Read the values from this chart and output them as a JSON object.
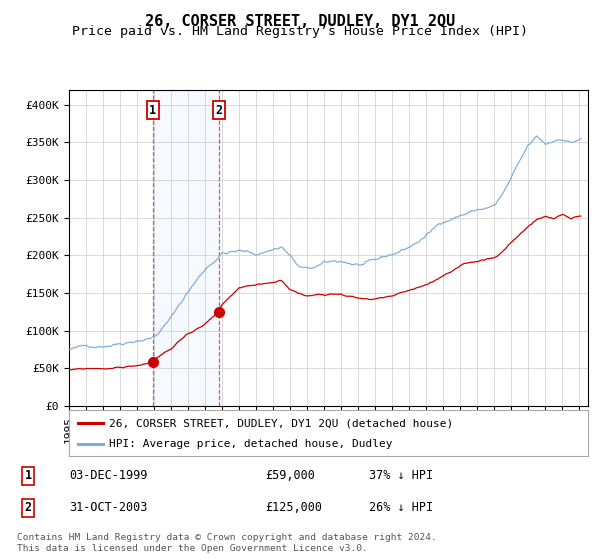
{
  "title": "26, CORSER STREET, DUDLEY, DY1 2QU",
  "subtitle": "Price paid vs. HM Land Registry’s House Price Index (HPI)",
  "ylim": [
    0,
    420000
  ],
  "yticks": [
    0,
    50000,
    100000,
    150000,
    200000,
    250000,
    300000,
    350000,
    400000
  ],
  "ytick_labels": [
    "£0",
    "£50K",
    "£100K",
    "£150K",
    "£200K",
    "£250K",
    "£300K",
    "£350K",
    "£400K"
  ],
  "red_line_color": "#cc0000",
  "blue_line_color": "#7aacdc",
  "bg_color": "#ffffff",
  "plot_bg_color": "#ffffff",
  "grid_color": "#cccccc",
  "sale1_date_num": 1999.917,
  "sale1_price": 59000,
  "sale2_date_num": 2003.833,
  "sale2_price": 125000,
  "sale1_label": "1",
  "sale2_label": "2",
  "legend_red_label": "26, CORSER STREET, DUDLEY, DY1 2QU (detached house)",
  "legend_blue_label": "HPI: Average price, detached house, Dudley",
  "table_row1": [
    "1",
    "03-DEC-1999",
    "£59,000",
    "37% ↓ HPI"
  ],
  "table_row2": [
    "2",
    "31-OCT-2003",
    "£125,000",
    "26% ↓ HPI"
  ],
  "footer": "Contains HM Land Registry data © Crown copyright and database right 2024.\nThis data is licensed under the Open Government Licence v3.0.",
  "title_fontsize": 11,
  "subtitle_fontsize": 9.5,
  "tick_fontsize": 8,
  "start_year": 1995,
  "end_year": 2025
}
